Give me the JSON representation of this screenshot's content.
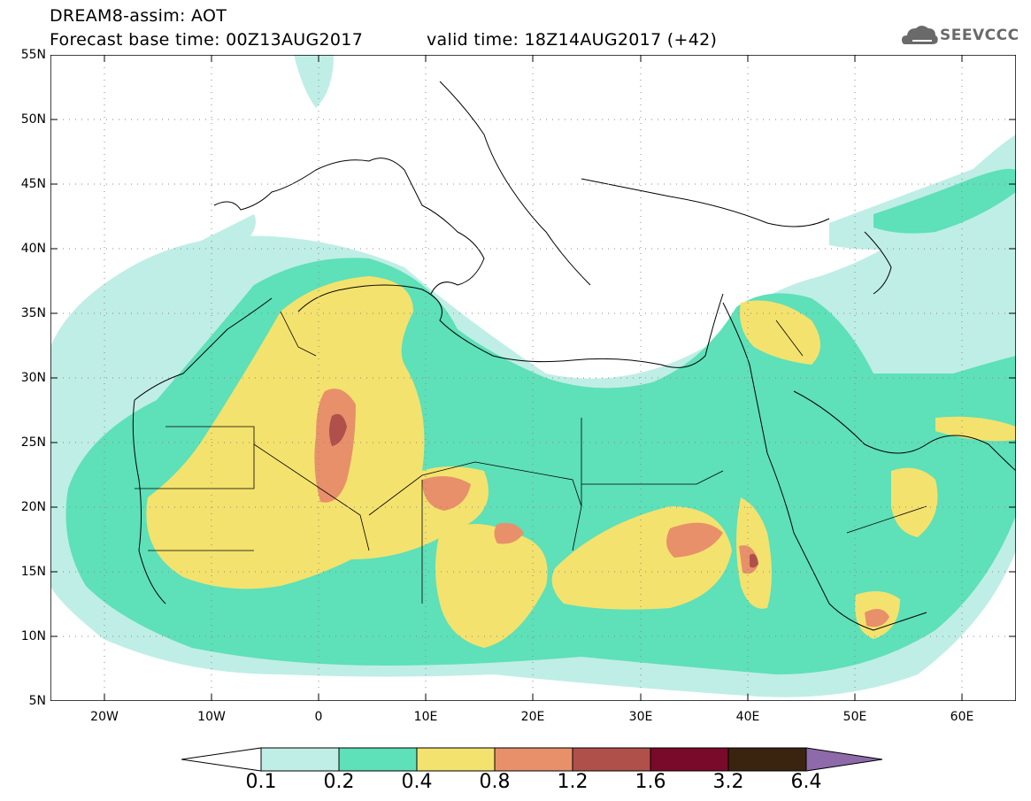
{
  "header": {
    "line1": "DREAM8-assim: AOT",
    "base_time": "Forecast base time: 00Z13AUG2017",
    "valid_time": "valid time: 18Z14AUG2017 (+42)"
  },
  "logo": {
    "text": "SEEVCCC",
    "icon": "cloud-logo-icon"
  },
  "map": {
    "lat_labels": [
      "55N",
      "50N",
      "45N",
      "40N",
      "35N",
      "30N",
      "25N",
      "20N",
      "15N",
      "10N",
      "5N"
    ],
    "lon_labels": [
      "20W",
      "10W",
      "0",
      "10E",
      "20E",
      "30E",
      "40E",
      "50E",
      "60E"
    ],
    "lat_range": [
      5,
      55
    ],
    "lon_range": [
      -25,
      65
    ]
  },
  "colorbar": {
    "labels": [
      "0.1",
      "0.2",
      "0.4",
      "0.8",
      "1.2",
      "1.6",
      "3.2",
      "6.4"
    ],
    "colors": [
      "#ffffff",
      "#bfeee6",
      "#5ee0b8",
      "#f4e26e",
      "#e8906a",
      "#b0504a",
      "#7a0a2a",
      "#3a2410",
      "#8e6aaa"
    ]
  },
  "colors": {
    "c01": "#bfeee6",
    "c02": "#5ee0b8",
    "c04": "#f4e26e",
    "c08": "#e8906a",
    "c12": "#b0504a"
  }
}
